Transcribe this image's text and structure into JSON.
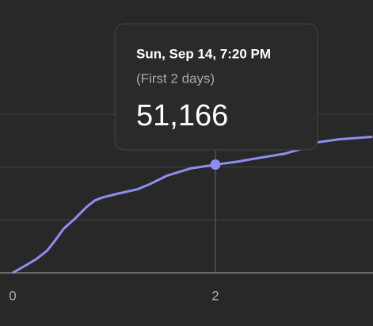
{
  "chart_data": {
    "type": "line",
    "x": [
      0,
      0.11,
      0.23,
      0.34,
      0.42,
      0.5,
      0.62,
      0.73,
      0.81,
      0.89,
      1.05,
      1.23,
      1.36,
      1.52,
      1.75,
      2,
      2.22,
      2.45,
      2.69,
      2.88,
      3,
      3.23,
      3.55
    ],
    "series": [
      {
        "color": "#8e8ef2",
        "values": [
          0,
          3000,
          6400,
          10500,
          15400,
          20700,
          25900,
          31200,
          34200,
          35700,
          37600,
          39500,
          42100,
          45900,
          49300,
          51166,
          52600,
          54500,
          56400,
          59000,
          61700,
          63200,
          64300
        ]
      }
    ],
    "xlim": [
      -0.125,
      3.555
    ],
    "xticks": [
      0,
      2
    ],
    "ylim": [
      0,
      129000
    ],
    "yticks": [
      0,
      25000,
      50000,
      75000
    ],
    "grid": true,
    "tooltip": {
      "date": "Sun, Sep 14, 7:20 PM",
      "period": "(First 2 days)",
      "value_label": "51,166",
      "index": 15
    }
  }
}
